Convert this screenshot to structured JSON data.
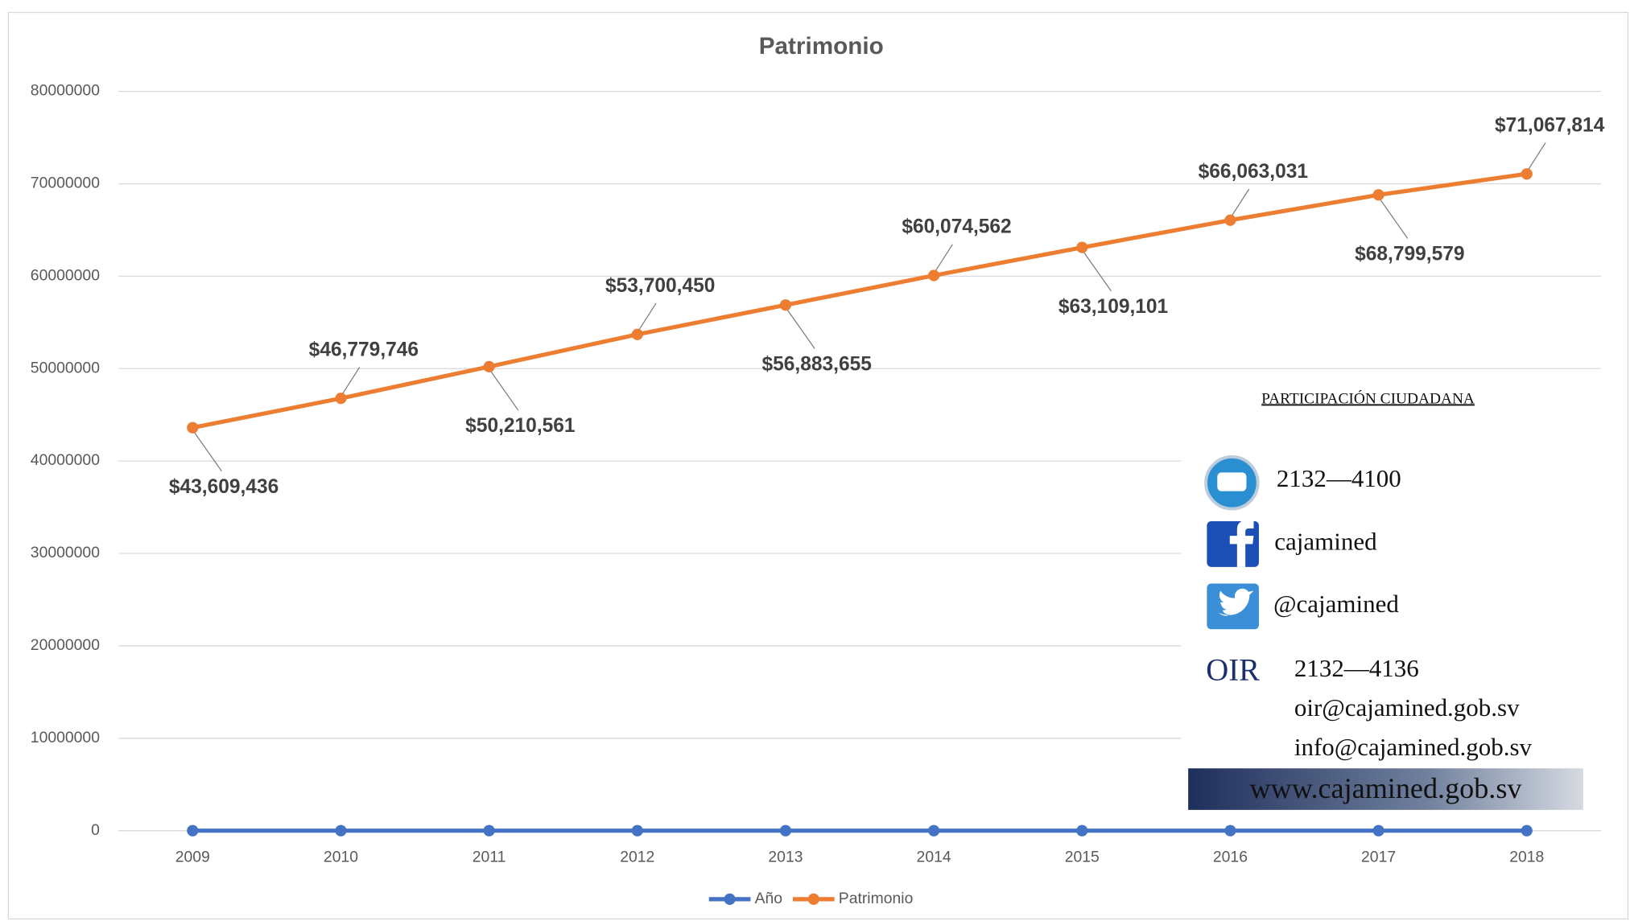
{
  "chart_data": {
    "type": "line",
    "title": "Patrimonio",
    "categories": [
      "2009",
      "2010",
      "2011",
      "2012",
      "2013",
      "2014",
      "2015",
      "2016",
      "2017",
      "2018"
    ],
    "series": [
      {
        "name": "Año",
        "color": "#4472c4",
        "values": [
          2009,
          2010,
          2011,
          2012,
          2013,
          2014,
          2015,
          2016,
          2017,
          2018
        ]
      },
      {
        "name": "Patrimonio",
        "color": "#ed7d31",
        "values": [
          43609436,
          46779746,
          50210561,
          53700450,
          56883655,
          60074562,
          63109101,
          66063031,
          68799579,
          71067814
        ],
        "value_labels": [
          "$43,609,436",
          "$46,779,746",
          "$50,210,561",
          "$53,700,450",
          "$56,883,655",
          "$60,074,562",
          "$63,109,101",
          "$66,063,031",
          "$68,799,579",
          "$71,067,814"
        ]
      }
    ],
    "ylim": [
      0,
      80000000
    ],
    "yticks": [
      0,
      10000000,
      20000000,
      30000000,
      40000000,
      50000000,
      60000000,
      70000000,
      80000000
    ],
    "grid": true,
    "legend": "bottom"
  },
  "contact": {
    "heading": "PARTICIPACIÓN CIUDADANA",
    "phone": "2132—4100",
    "facebook": "cajamined",
    "twitter": "@cajamined",
    "oir_logo": "OIR",
    "oir_phone": "2132—4136",
    "email_oir": "oir@cajamined.gob.sv",
    "email_info": "info@cajamined.gob.sv",
    "website": "www.cajamined.gob.sv"
  }
}
